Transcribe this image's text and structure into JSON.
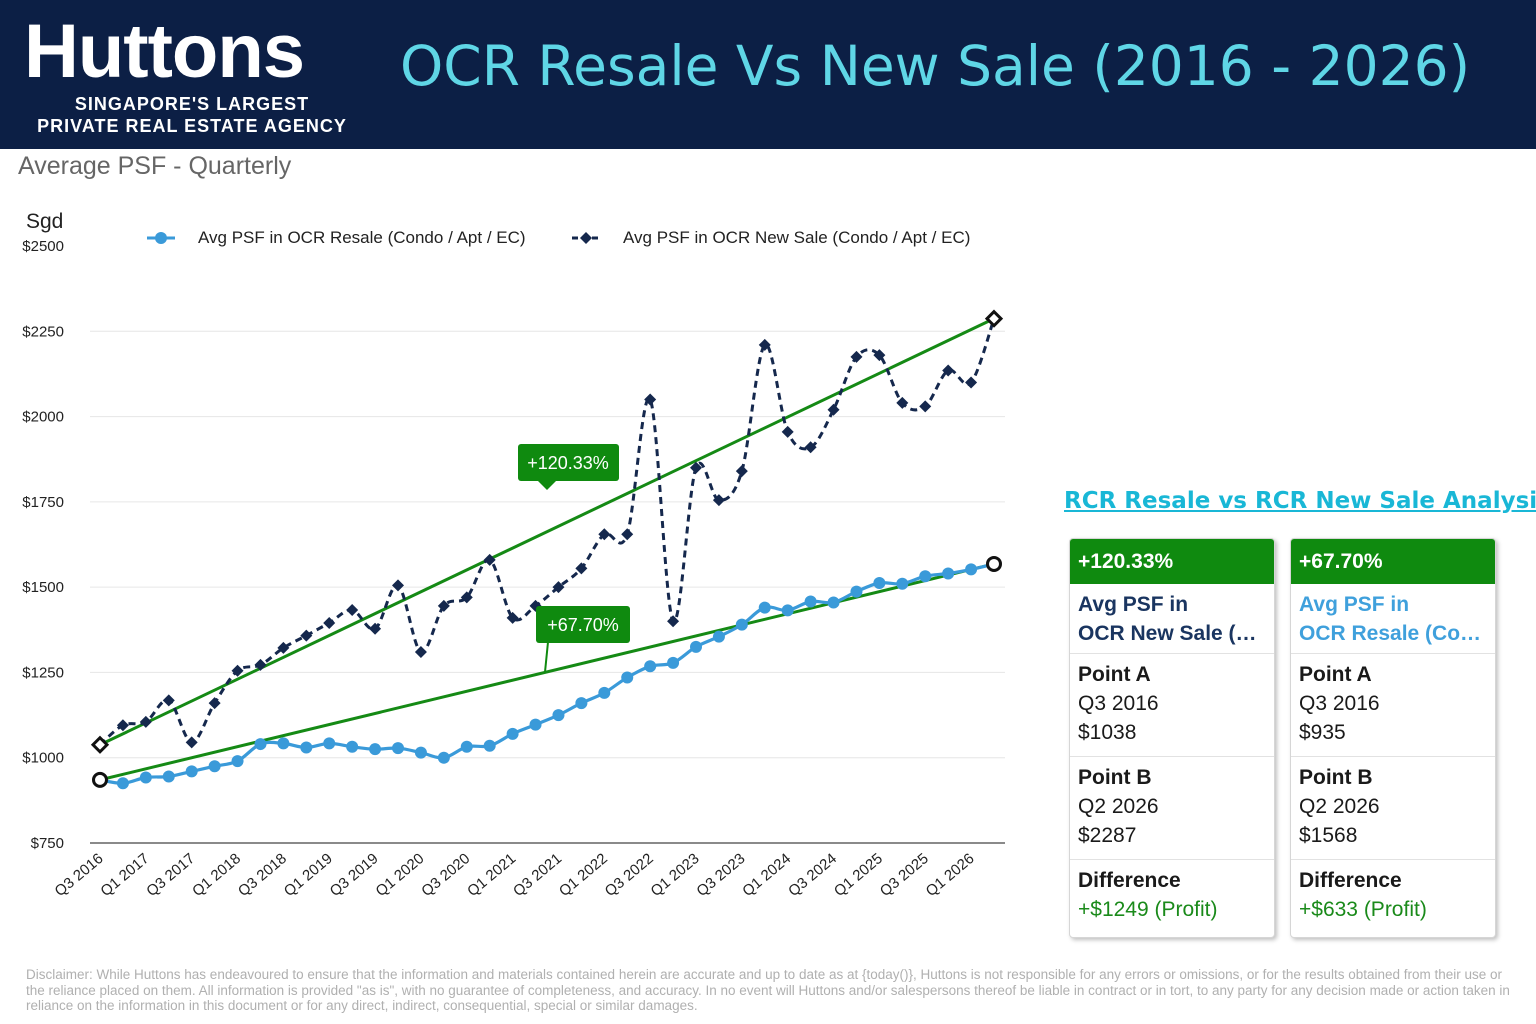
{
  "header": {
    "logo_word": "Huttons",
    "logo_line1": "SINGAPORE'S LARGEST",
    "logo_line2": "PRIVATE REAL ESTATE AGENCY",
    "title": "OCR Resale Vs New Sale (2016 - 2026)"
  },
  "chart_subtitle": "Average PSF - Quarterly",
  "chart_data": {
    "type": "line",
    "ylabel": "Sgd",
    "ylim": [
      750,
      2500
    ],
    "yticks": [
      750,
      1000,
      1250,
      1500,
      1750,
      2000,
      2250,
      2500
    ],
    "ytick_labels": [
      "$750",
      "$1000",
      "$1250",
      "$1500",
      "$1750",
      "$2000",
      "$2250",
      "$2500"
    ],
    "x": [
      "Q3 2016",
      "Q4 2016",
      "Q1 2017",
      "Q2 2017",
      "Q3 2017",
      "Q4 2017",
      "Q1 2018",
      "Q2 2018",
      "Q3 2018",
      "Q4 2018",
      "Q1 2019",
      "Q2 2019",
      "Q3 2019",
      "Q4 2019",
      "Q1 2020",
      "Q2 2020",
      "Q3 2020",
      "Q4 2020",
      "Q1 2021",
      "Q2 2021",
      "Q3 2021",
      "Q4 2021",
      "Q1 2022",
      "Q2 2022",
      "Q3 2022",
      "Q4 2022",
      "Q1 2023",
      "Q2 2023",
      "Q3 2023",
      "Q4 2023",
      "Q1 2024",
      "Q2 2024",
      "Q3 2024",
      "Q4 2024",
      "Q1 2025",
      "Q2 2025",
      "Q3 2025",
      "Q4 2025",
      "Q1 2026",
      "Q2 2026"
    ],
    "xtick_labels": [
      "Q3 2016",
      "Q1 2017",
      "Q3 2017",
      "Q1 2018",
      "Q3 2018",
      "Q1 2019",
      "Q3 2019",
      "Q1 2020",
      "Q3 2020",
      "Q1 2021",
      "Q3 2021",
      "Q1 2022",
      "Q3 2022",
      "Q1 2023",
      "Q3 2023",
      "Q1 2024",
      "Q3 2024",
      "Q1 2025",
      "Q3 2025",
      "Q1 2026"
    ],
    "legend_position": "top",
    "grid": "horizontal",
    "series": [
      {
        "name": "Avg PSF in OCR Resale (Condo / Apt / EC)",
        "color": "#3a9ad9",
        "line_style": "solid",
        "marker": "circle",
        "values": [
          935,
          925,
          942,
          945,
          960,
          975,
          990,
          1040,
          1042,
          1030,
          1042,
          1032,
          1025,
          1028,
          1015,
          1000,
          1032,
          1035,
          1070,
          1097,
          1125,
          1160,
          1190,
          1235,
          1268,
          1278,
          1325,
          1355,
          1390,
          1440,
          1432,
          1458,
          1455,
          1487,
          1512,
          1510,
          1532,
          1540,
          1552,
          1568
        ]
      },
      {
        "name": "Avg PSF in OCR New Sale (Condo / Apt / EC)",
        "color": "#15284d",
        "line_style": "dashed",
        "marker": "diamond",
        "values": [
          1038,
          1095,
          1105,
          1168,
          1045,
          1160,
          1255,
          1272,
          1322,
          1358,
          1395,
          1433,
          1378,
          1505,
          1310,
          1445,
          1470,
          1580,
          1410,
          1445,
          1500,
          1555,
          1655,
          1655,
          2050,
          1400,
          1850,
          1755,
          1840,
          2210,
          1955,
          1910,
          2020,
          2175,
          2180,
          2040,
          2030,
          2135,
          2100,
          2287
        ]
      }
    ],
    "trendlines": [
      {
        "series": "Avg PSF in OCR New Sale (Condo / Apt / EC)",
        "from": "Q3 2016",
        "to": "Q2 2026",
        "start": 1038,
        "end": 2287,
        "label": "+120.33%",
        "color": "#158a15"
      },
      {
        "series": "Avg PSF in OCR Resale (Condo / Apt / EC)",
        "from": "Q3 2016",
        "to": "Q2 2026",
        "start": 935,
        "end": 1568,
        "label": "+67.70%",
        "color": "#158a15"
      }
    ]
  },
  "analysis": {
    "title": "RCR Resale vs RCR New Sale Analysis",
    "cards": [
      {
        "change": "+120.33%",
        "name_line1": "Avg PSF in",
        "name_line2": "OCR New Sale (Condo / Apt / EC)",
        "point_a_label": "Point A",
        "point_a_period": "Q3 2016",
        "point_a_value": "$1038",
        "point_b_label": "Point B",
        "point_b_period": "Q2 2026",
        "point_b_value": "$2287",
        "difference_label": "Difference",
        "difference_value": "+$1249 (Profit)"
      },
      {
        "change": "+67.70%",
        "name_line1": "Avg PSF in",
        "name_line2": "OCR Resale (Condo / Apt / EC)",
        "point_a_label": "Point A",
        "point_a_period": "Q3 2016",
        "point_a_value": "$935",
        "point_b_label": "Point B",
        "point_b_period": "Q2 2026",
        "point_b_value": "$1568",
        "difference_label": "Difference",
        "difference_value": "+$633 (Profit)"
      }
    ]
  },
  "disclaimer": "Disclaimer: While Huttons has endeavoured to ensure that the information and materials contained herein are accurate and up to date as at {today()}, Huttons is not responsible for any errors or omissions, or for the results obtained from their use or the reliance placed on them. All information is provided \"as is\", with no guarantee of completeness, and accuracy. In no event will Huttons and/or salespersons thereof be liable in contract or in tort, to any party for any decision made or action taken in reliance on the information in this document or for any direct, indirect, consequential, special or similar damages."
}
